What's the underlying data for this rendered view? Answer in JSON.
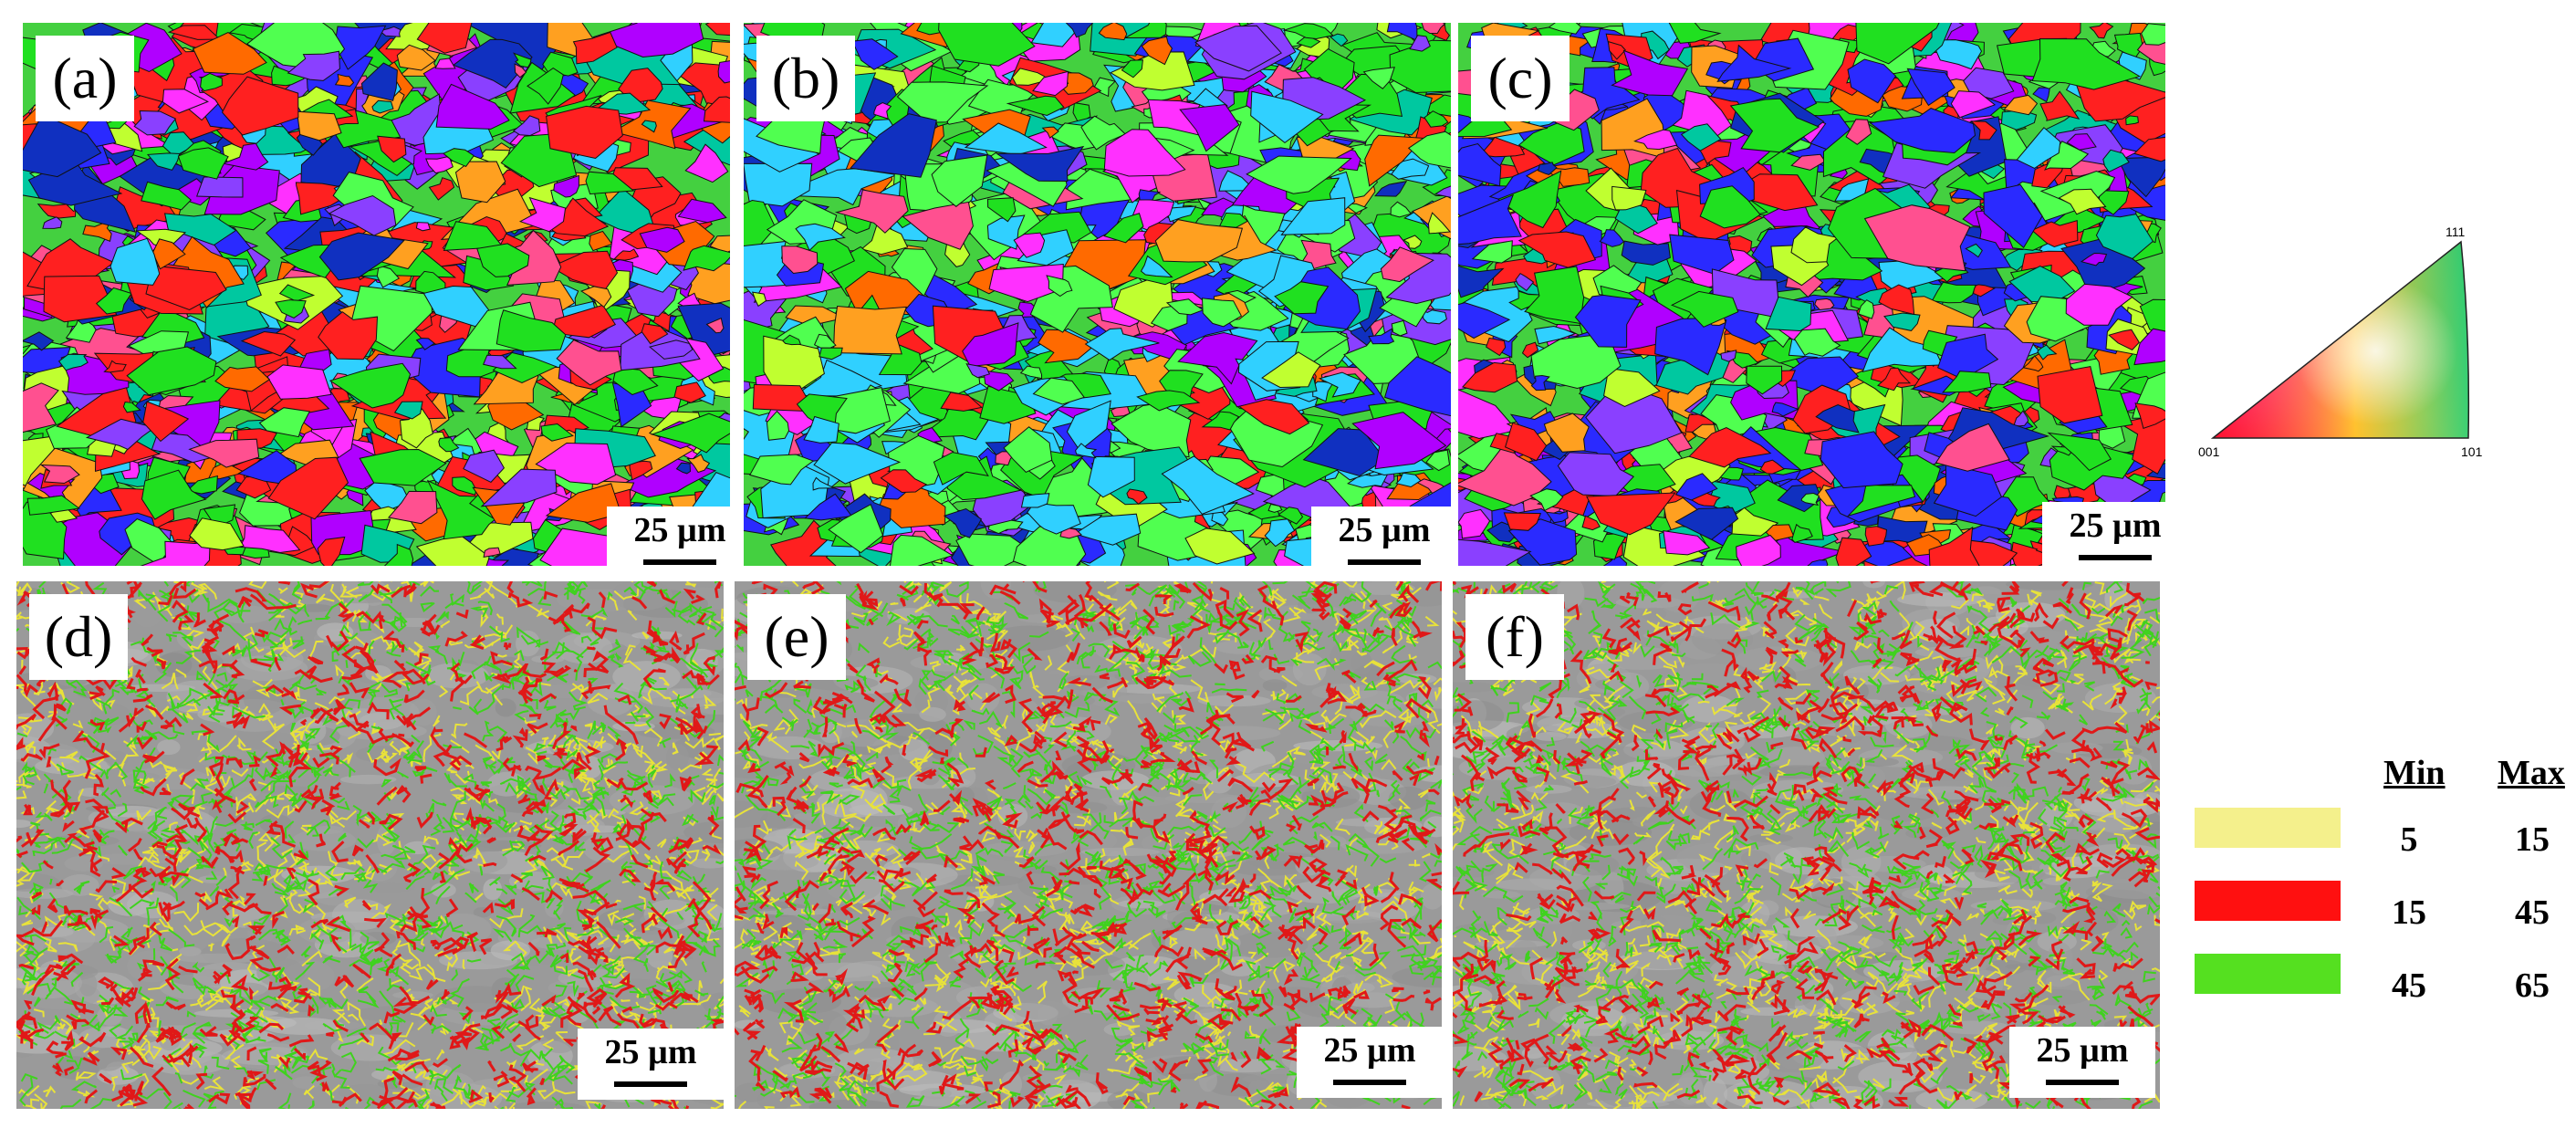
{
  "panels": [
    {
      "label": "(a)",
      "type": "ipf",
      "scale": "25 µm"
    },
    {
      "label": "(b)",
      "type": "ipf",
      "scale": "25 µm"
    },
    {
      "label": "(c)",
      "type": "ipf",
      "scale": "25 µm"
    },
    {
      "label": "(d)",
      "type": "boundary",
      "scale": "25 µm"
    },
    {
      "label": "(e)",
      "type": "boundary",
      "scale": "25 µm"
    },
    {
      "label": "(f)",
      "type": "boundary",
      "scale": "25 µm"
    }
  ],
  "ipf_key": {
    "top": "111",
    "left": "001",
    "right": "101"
  },
  "boundary_legend": {
    "min_header": "Min",
    "max_header": "Max",
    "rows": [
      {
        "color": "#f4f08c",
        "min": "5",
        "max": "15"
      },
      {
        "color": "#ff1010",
        "min": "15",
        "max": "45"
      },
      {
        "color": "#55e020",
        "min": "45",
        "max": "65"
      }
    ]
  },
  "colors": {
    "boundary_low": "#e8e23a",
    "boundary_mid": "#e01818",
    "boundary_high": "#3fd21e",
    "sem_gray": "#9a9a9a"
  }
}
